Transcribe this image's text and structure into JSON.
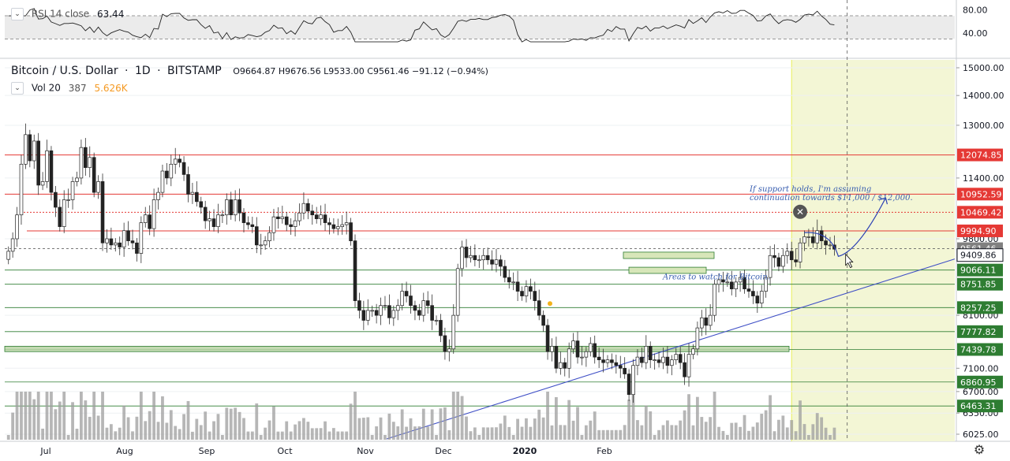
{
  "rsi": {
    "label": "RSI 14 close",
    "value": "63.44",
    "ticks": [
      "80.00",
      "40.00"
    ]
  },
  "header": {
    "symbol": "Bitcoin / U.S. Dollar",
    "interval": "1D",
    "exchange": "BITSTAMP",
    "o_prefix": "O",
    "open": "9664.87",
    "h_prefix": "H",
    "high": "9676.56",
    "l_prefix": "L",
    "low": "9533.00",
    "c_prefix": "C",
    "close": "9561.46",
    "change": "−91.12 (−0.94%)"
  },
  "volume": {
    "label": "Vol 20",
    "value": "387",
    "ma": "5.626K"
  },
  "chart_data": {
    "type": "candlestick",
    "xlabel": "",
    "ylabel": "",
    "x_ticks": [
      "Jul",
      "Aug",
      "Sep",
      "Oct",
      "Nov",
      "Dec",
      "2020",
      "Feb"
    ],
    "y_ticks": [
      "15000.00",
      "14000.00",
      "13000.00",
      "11400.00",
      "9800.00",
      "8100.00",
      "7100.00",
      "6700.00",
      "6350.00",
      "6025.00"
    ],
    "ylim": [
      6000,
      15000
    ],
    "price_scale": "log",
    "grid": true,
    "resistance_levels": [
      {
        "value": "12074.85",
        "color": "#e53935"
      },
      {
        "value": "10952.59",
        "color": "#e53935"
      },
      {
        "value": "10469.42",
        "color": "#e53935"
      },
      {
        "value": "9994.90",
        "color": "#e53935"
      }
    ],
    "last_price": {
      "value": "9561.46",
      "color": "#808080"
    },
    "trendline_label": {
      "value": "9409.86",
      "color": "#131722"
    },
    "support_levels": [
      {
        "value": "9066.11",
        "color": "#2e7d32"
      },
      {
        "value": "8751.85",
        "color": "#2e7d32"
      },
      {
        "value": "8257.25",
        "color": "#2e7d32"
      },
      {
        "value": "7777.82",
        "color": "#2e7d32"
      },
      {
        "value": "7439.78",
        "color": "#2e7d32"
      },
      {
        "value": "6860.95",
        "color": "#2e7d32"
      },
      {
        "value": "6463.31",
        "color": "#2e7d32"
      }
    ],
    "annotations": [
      "If support holds, I'm assuming",
      "continuation towards $11,000 / $12,000.",
      "Areas to watch for Bitcoin."
    ],
    "daily_closes_approx": [
      9500,
      9800,
      10400,
      11800,
      12700,
      11900,
      12500,
      11200,
      11300,
      12200,
      11000,
      10600,
      10100,
      10800,
      10800,
      11300,
      11400,
      12300,
      11700,
      12000,
      11000,
      11300,
      9700,
      9800,
      9650,
      9700,
      9600,
      10000,
      9750,
      9700,
      9450,
      10200,
      10400,
      10050,
      10800,
      11000,
      11600,
      11400,
      11800,
      11950,
      11850,
      11500,
      10950,
      11000,
      10750,
      10600,
      10250,
      10300,
      10100,
      10400,
      10400,
      10800,
      10400,
      10800,
      10450,
      10200,
      10150,
      10100,
      9650,
      9650,
      9750,
      9950,
      10350,
      10300,
      10350,
      10150,
      10100,
      10250,
      10450,
      10700,
      10500,
      10400,
      10300,
      10400,
      10200,
      10150,
      10050,
      10100,
      10150,
      10200,
      9750,
      8400,
      8200,
      8000,
      8200,
      8200,
      8100,
      8300,
      8300,
      8050,
      8200,
      8300,
      8600,
      8500,
      8300,
      8200,
      8100,
      8400,
      8300,
      8000,
      8000,
      7700,
      7400,
      7450,
      8100,
      9100,
      9600,
      9350,
      9400,
      9300,
      9300,
      9400,
      9300,
      9200,
      9300,
      9150,
      8900,
      8800,
      8800,
      8600,
      8500,
      8700,
      8600,
      8400,
      8100,
      7900,
      7400,
      7500,
      7100,
      7200,
      7100,
      7450,
      7600,
      7300,
      7300,
      7400,
      7550,
      7300,
      7250,
      7200,
      7250,
      7200,
      7150,
      7100,
      7000,
      6650,
      7150,
      7300,
      7200,
      7500,
      7250,
      7250,
      7200,
      7300,
      7150,
      7250,
      7350,
      7200,
      6950,
      7350,
      7450,
      7850,
      8050,
      7900,
      8100,
      8750,
      8850,
      8800,
      8800,
      8650,
      8800,
      8900,
      8650,
      8600,
      8500,
      8350,
      8600,
      8900,
      9400,
      9350,
      9150,
      9400,
      9500,
      9300,
      9250,
      9700,
      9850,
      9850,
      9700,
      10000,
      9750,
      9650,
      9650,
      9550
    ]
  }
}
